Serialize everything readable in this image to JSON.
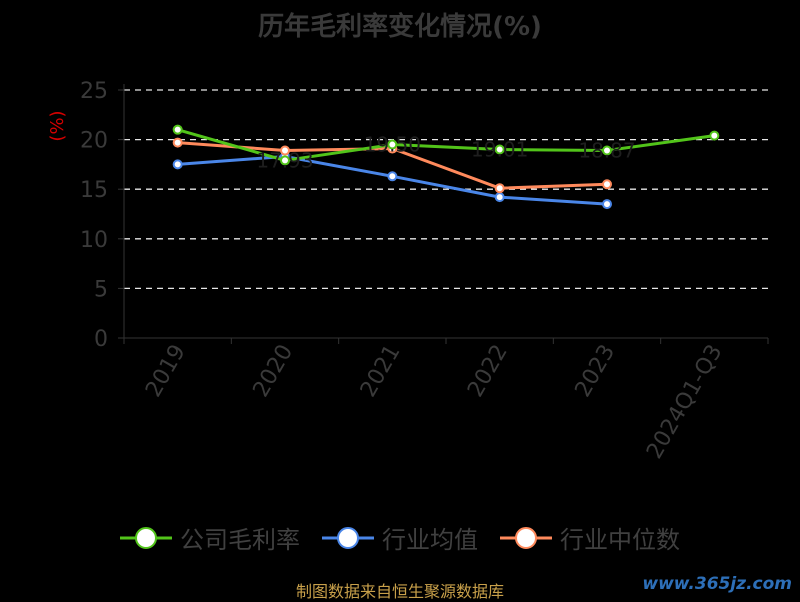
{
  "title": "历年毛利率变化情况(%)",
  "source_note": "制图数据来自恒生聚源数据库",
  "watermark": "www.365jz.com",
  "chart_data": {
    "type": "line",
    "title": "历年毛利率变化情况(%)",
    "ylabel": "(%)",
    "xlabel": "",
    "ylim": [
      0,
      25
    ],
    "yticks": [
      0,
      5,
      10,
      15,
      20,
      25
    ],
    "grid": true,
    "legend_position": "bottom",
    "categories": [
      "2019",
      "2020",
      "2021",
      "2022",
      "2023",
      "2024Q1-Q3"
    ],
    "series": [
      {
        "name": "公司毛利率",
        "color": "#52c41a",
        "values": [
          21.0,
          17.9,
          19.5,
          19.0,
          18.9,
          20.4
        ]
      },
      {
        "name": "行业均值",
        "color": "#4a86e8",
        "values": [
          17.5,
          18.3,
          16.3,
          14.2,
          13.5,
          null
        ]
      },
      {
        "name": "行业中位数",
        "color": "#ff8a5c",
        "values": [
          19.7,
          18.9,
          19.1,
          15.1,
          15.5,
          null
        ]
      }
    ],
    "data_labels": [
      {
        "series": 0,
        "index": 1,
        "text": "17.93"
      },
      {
        "series": 0,
        "index": 2,
        "text": "19.50"
      },
      {
        "series": 0,
        "index": 3,
        "text": "19.01"
      },
      {
        "series": 0,
        "index": 4,
        "text": "18.87"
      }
    ]
  }
}
